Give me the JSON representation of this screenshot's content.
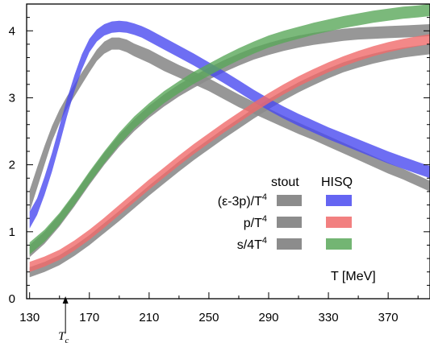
{
  "chart_data": {
    "type": "area",
    "xlim": [
      128,
      398
    ],
    "ylim": [
      0,
      4.4
    ],
    "x_ticks": [
      130,
      170,
      210,
      250,
      290,
      330,
      370
    ],
    "x_tick_labels": [
      "130",
      "170",
      "210",
      "250",
      "290",
      "330",
      "370"
    ],
    "y_ticks": [
      0,
      1,
      2,
      3,
      4
    ],
    "y_tick_labels": [
      "0",
      "1",
      "2",
      "3",
      "4"
    ],
    "xlabel": "T [MeV]",
    "annotation": {
      "text": "T",
      "sub": "c",
      "x": 154
    },
    "legend": {
      "col_headers": [
        "stout",
        "HISQ"
      ],
      "rows": [
        "(ε-3p)/T",
        "p/T",
        "s/4T"
      ],
      "row_sup": "4"
    },
    "colors": {
      "stout": "#8c8c8c",
      "hisq_trace": "#4a4af0",
      "hisq_pressure": "#f06a6a",
      "hisq_entropy": "#5aa85a"
    },
    "series": [
      {
        "group": "stout",
        "observable": "trace",
        "x": [
          130,
          135,
          140,
          145,
          150,
          155,
          160,
          165,
          170,
          175,
          180,
          185,
          190,
          195,
          200,
          210,
          220,
          230,
          240,
          250,
          260,
          270,
          280,
          290,
          300,
          310,
          320,
          330,
          340,
          350,
          360,
          370,
          380,
          390,
          398
        ],
        "low": [
          1.3,
          1.65,
          2.0,
          2.35,
          2.62,
          2.84,
          3.02,
          3.2,
          3.38,
          3.55,
          3.66,
          3.72,
          3.72,
          3.68,
          3.62,
          3.52,
          3.4,
          3.3,
          3.2,
          3.1,
          2.98,
          2.86,
          2.76,
          2.66,
          2.56,
          2.46,
          2.37,
          2.27,
          2.17,
          2.07,
          1.97,
          1.87,
          1.78,
          1.68,
          1.6
        ],
        "high": [
          1.62,
          1.96,
          2.28,
          2.58,
          2.82,
          3.02,
          3.2,
          3.38,
          3.55,
          3.72,
          3.84,
          3.9,
          3.9,
          3.87,
          3.81,
          3.72,
          3.6,
          3.49,
          3.39,
          3.29,
          3.17,
          3.05,
          2.94,
          2.84,
          2.73,
          2.63,
          2.53,
          2.43,
          2.33,
          2.23,
          2.13,
          2.03,
          1.94,
          1.84,
          1.76
        ]
      },
      {
        "group": "stout",
        "observable": "pressure",
        "x": [
          130,
          140,
          150,
          160,
          170,
          180,
          190,
          200,
          210,
          220,
          230,
          240,
          250,
          260,
          270,
          280,
          290,
          300,
          310,
          320,
          330,
          340,
          350,
          360,
          370,
          380,
          390,
          398
        ],
        "low": [
          0.32,
          0.4,
          0.5,
          0.64,
          0.8,
          0.98,
          1.16,
          1.35,
          1.54,
          1.72,
          1.9,
          2.07,
          2.23,
          2.39,
          2.54,
          2.69,
          2.83,
          2.96,
          3.08,
          3.19,
          3.29,
          3.38,
          3.45,
          3.51,
          3.56,
          3.6,
          3.63,
          3.65
        ],
        "high": [
          0.47,
          0.55,
          0.65,
          0.79,
          0.95,
          1.13,
          1.31,
          1.5,
          1.69,
          1.87,
          2.05,
          2.22,
          2.38,
          2.54,
          2.69,
          2.84,
          2.98,
          3.11,
          3.23,
          3.34,
          3.44,
          3.53,
          3.6,
          3.66,
          3.71,
          3.75,
          3.78,
          3.8
        ]
      },
      {
        "group": "stout",
        "observable": "entropy",
        "x": [
          130,
          140,
          150,
          160,
          170,
          180,
          190,
          200,
          210,
          220,
          230,
          240,
          250,
          260,
          270,
          280,
          290,
          300,
          310,
          320,
          330,
          340,
          350,
          360,
          370,
          380,
          390,
          398
        ],
        "low": [
          0.62,
          0.82,
          1.08,
          1.38,
          1.7,
          2.0,
          2.27,
          2.5,
          2.7,
          2.87,
          3.02,
          3.15,
          3.27,
          3.38,
          3.48,
          3.57,
          3.64,
          3.7,
          3.75,
          3.79,
          3.82,
          3.85,
          3.87,
          3.88,
          3.89,
          3.9,
          3.91,
          3.92
        ],
        "high": [
          0.8,
          1.0,
          1.26,
          1.56,
          1.88,
          2.18,
          2.45,
          2.68,
          2.88,
          3.05,
          3.2,
          3.33,
          3.45,
          3.56,
          3.66,
          3.75,
          3.82,
          3.88,
          3.93,
          3.97,
          4.0,
          4.03,
          4.05,
          4.06,
          4.07,
          4.08,
          4.09,
          4.1
        ]
      },
      {
        "group": "HISQ",
        "observable": "trace",
        "x": [
          130,
          135,
          140,
          145,
          150,
          155,
          160,
          165,
          170,
          175,
          180,
          185,
          190,
          195,
          200,
          205,
          210,
          220,
          230,
          240,
          250,
          260,
          270,
          280,
          290,
          300,
          310,
          320,
          330,
          340,
          350,
          360,
          370,
          380,
          390,
          398
        ],
        "low": [
          1.05,
          1.25,
          1.55,
          1.9,
          2.3,
          2.72,
          3.1,
          3.42,
          3.68,
          3.84,
          3.93,
          3.97,
          3.98,
          3.97,
          3.94,
          3.9,
          3.84,
          3.72,
          3.6,
          3.48,
          3.35,
          3.22,
          3.08,
          2.94,
          2.81,
          2.69,
          2.58,
          2.48,
          2.38,
          2.29,
          2.2,
          2.11,
          2.02,
          1.94,
          1.86,
          1.8
        ],
        "high": [
          1.3,
          1.5,
          1.82,
          2.18,
          2.58,
          2.98,
          3.34,
          3.65,
          3.88,
          4.02,
          4.1,
          4.14,
          4.15,
          4.14,
          4.11,
          4.07,
          4.02,
          3.9,
          3.78,
          3.66,
          3.53,
          3.4,
          3.26,
          3.12,
          2.99,
          2.87,
          2.76,
          2.66,
          2.56,
          2.47,
          2.38,
          2.29,
          2.2,
          2.12,
          2.04,
          1.98
        ]
      },
      {
        "group": "HISQ",
        "observable": "pressure",
        "x": [
          130,
          140,
          150,
          160,
          170,
          180,
          190,
          200,
          210,
          220,
          230,
          240,
          250,
          260,
          270,
          280,
          290,
          300,
          310,
          320,
          330,
          340,
          350,
          360,
          370,
          380,
          390,
          398
        ],
        "low": [
          0.4,
          0.48,
          0.58,
          0.72,
          0.88,
          1.06,
          1.25,
          1.44,
          1.63,
          1.81,
          1.99,
          2.16,
          2.32,
          2.48,
          2.63,
          2.78,
          2.92,
          3.05,
          3.17,
          3.28,
          3.38,
          3.47,
          3.55,
          3.62,
          3.68,
          3.73,
          3.77,
          3.8
        ],
        "high": [
          0.55,
          0.63,
          0.73,
          0.87,
          1.03,
          1.21,
          1.4,
          1.59,
          1.78,
          1.96,
          2.14,
          2.31,
          2.47,
          2.63,
          2.78,
          2.93,
          3.07,
          3.2,
          3.32,
          3.43,
          3.53,
          3.62,
          3.7,
          3.77,
          3.83,
          3.88,
          3.92,
          3.95
        ]
      },
      {
        "group": "HISQ",
        "observable": "entropy",
        "x": [
          130,
          140,
          150,
          160,
          170,
          180,
          190,
          200,
          210,
          220,
          230,
          240,
          250,
          260,
          270,
          280,
          290,
          300,
          310,
          320,
          330,
          340,
          350,
          360,
          370,
          380,
          390,
          398
        ],
        "low": [
          0.66,
          0.85,
          1.1,
          1.4,
          1.72,
          2.02,
          2.3,
          2.54,
          2.74,
          2.92,
          3.07,
          3.21,
          3.33,
          3.45,
          3.56,
          3.66,
          3.75,
          3.82,
          3.88,
          3.94,
          3.99,
          4.04,
          4.08,
          4.12,
          4.15,
          4.18,
          4.2,
          4.22
        ],
        "high": [
          0.84,
          1.03,
          1.28,
          1.58,
          1.9,
          2.2,
          2.48,
          2.72,
          2.92,
          3.1,
          3.25,
          3.39,
          3.51,
          3.63,
          3.74,
          3.84,
          3.93,
          4.0,
          4.06,
          4.12,
          4.17,
          4.22,
          4.26,
          4.3,
          4.33,
          4.36,
          4.38,
          4.4
        ]
      }
    ]
  }
}
